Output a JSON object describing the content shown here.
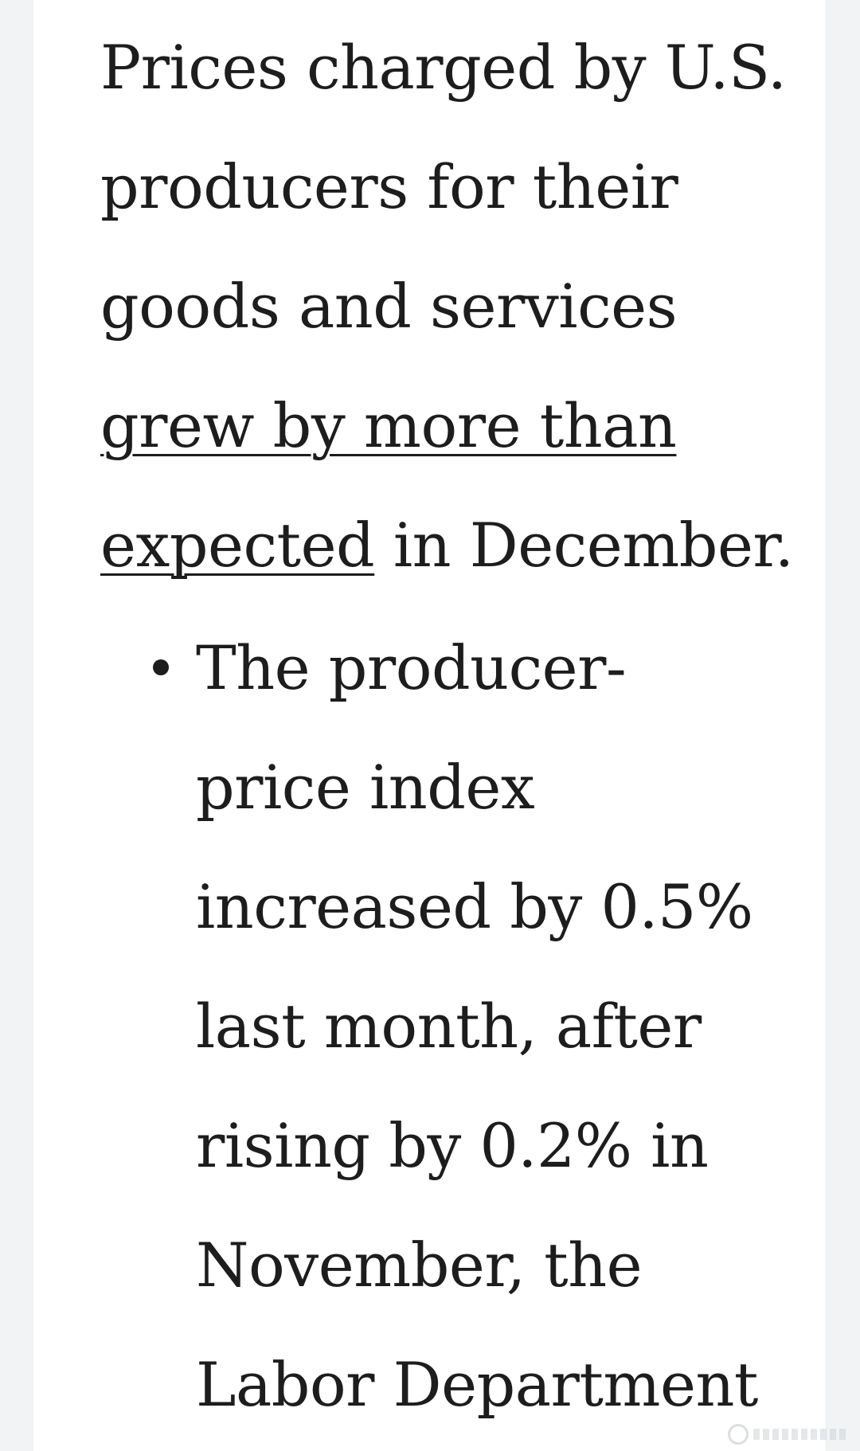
{
  "article": {
    "lead": {
      "line1": "Prices charged by U.S.",
      "line2": "producers for their",
      "line3": "goods and services",
      "link_line1": "grew by more than",
      "link_line2": "expected",
      "line5_rest": " in December."
    },
    "bullets": [
      {
        "lines": [
          "The producer-",
          "price index",
          "increased by 0.5%",
          "last month, after",
          "rising by 0.2% in",
          "November, the",
          "Labor Department"
        ]
      }
    ]
  },
  "colors": {
    "background": "#f1f3f5",
    "card": "#ffffff",
    "text": "#1d1d1d"
  },
  "icons": {
    "bullet": "bullet-dot-icon",
    "watermark": "watermark-logo-icon"
  }
}
